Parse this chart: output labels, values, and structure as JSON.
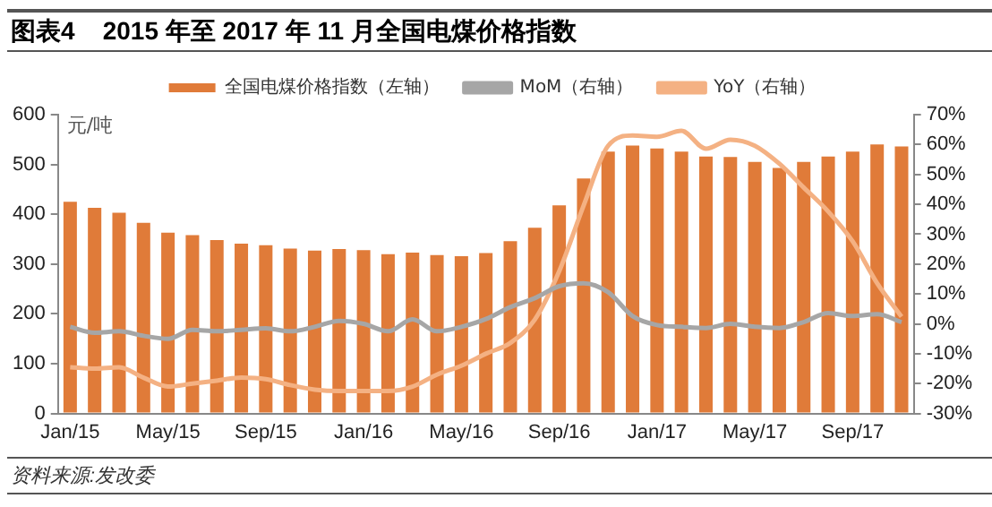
{
  "chart_data": {
    "type": "bar",
    "title": "图表4    2015 年至 2017 年 11 月全国电煤价格指数",
    "ylabel": "元/吨",
    "annotations": [
      "资料来源:发改委"
    ],
    "categories": [
      "Jan/15",
      null,
      null,
      null,
      "May/15",
      null,
      null,
      null,
      "Sep/15",
      null,
      null,
      null,
      "Jan/16",
      null,
      null,
      null,
      "May/16",
      null,
      null,
      null,
      "Sep/16",
      null,
      null,
      null,
      "Jan/17",
      null,
      null,
      null,
      "May/17",
      null,
      null,
      null,
      "Sep/17",
      null,
      null
    ],
    "series": [
      {
        "name": "全国电煤价格指数（左轴）",
        "color": "#e07b39",
        "values": [
          425,
          413,
          403,
          383,
          363,
          358,
          348,
          341,
          338,
          331,
          327,
          330,
          328,
          320,
          323,
          318,
          316,
          322,
          346,
          373,
          418,
          472,
          526,
          538,
          532,
          526,
          516,
          515,
          505,
          493,
          505,
          516,
          526,
          540,
          536
        ]
      },
      {
        "name": "MoM（右轴）",
        "type": "line",
        "axis": "y2",
        "color": "#a6a6a6",
        "values": [
          -1,
          -3,
          -2.5,
          -4,
          -5,
          -2,
          -2.5,
          -2,
          -1.5,
          -2.5,
          -1,
          1,
          0,
          -2.5,
          1.5,
          -2.5,
          -1,
          1.6,
          5.6,
          8.6,
          12.6,
          13.6,
          10.6,
          2.6,
          -0.4,
          -1,
          -1.4,
          0,
          -1,
          -1.4,
          0.6,
          3.6,
          2.6,
          3.2,
          0.6
        ]
      },
      {
        "name": "YoY（右轴）",
        "type": "line",
        "axis": "y2",
        "color": "#f4b183",
        "values": [
          -14.5,
          -15,
          -14.5,
          -18,
          -21,
          -20,
          -19,
          -18,
          -18.5,
          -20.5,
          -22,
          -22.5,
          -22.5,
          -22.5,
          -21,
          -17,
          -14,
          -10,
          -6.4,
          1.4,
          17.6,
          39.6,
          59.6,
          63,
          62.6,
          64.6,
          58.6,
          61.6,
          59.6,
          53.6,
          45.6,
          37.6,
          27.6,
          13.6,
          2.4
        ]
      }
    ],
    "ylim": [
      0,
      600
    ],
    "yticks": [
      0,
      100,
      200,
      300,
      400,
      500,
      600
    ],
    "y2lim": [
      -30,
      70
    ],
    "y2ticks": [
      {
        "value": -30,
        "label": "-30%"
      },
      {
        "value": -20,
        "label": "-20%"
      },
      {
        "value": -10,
        "label": "-10%"
      },
      {
        "value": 0,
        "label": "0%"
      },
      {
        "value": 10,
        "label": "10%"
      },
      {
        "value": 20,
        "label": "20%"
      },
      {
        "value": 30,
        "label": "30%"
      },
      {
        "value": 40,
        "label": "40%"
      },
      {
        "value": 50,
        "label": "50%"
      },
      {
        "value": 60,
        "label": "60%"
      },
      {
        "value": 70,
        "label": "70%"
      }
    ],
    "legend": "top",
    "marker": "none",
    "line_style": "solid"
  }
}
